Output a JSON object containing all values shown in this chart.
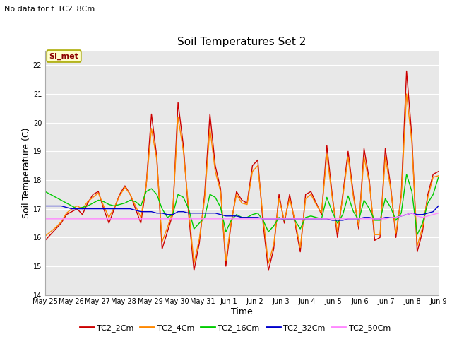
{
  "title": "Soil Temperatures Set 2",
  "suptitle": "No data for f_TC2_8Cm",
  "xlabel": "Time",
  "ylabel": "Soil Temperature (C)",
  "ylim": [
    14.0,
    22.5
  ],
  "yticks": [
    14.0,
    15.0,
    16.0,
    17.0,
    18.0,
    19.0,
    20.0,
    21.0,
    22.0
  ],
  "bg_color": "#e8e8e8",
  "annotation_text": "SI_met",
  "series_colors": {
    "TC2_2Cm": "#cc0000",
    "TC2_4Cm": "#ff8800",
    "TC2_16Cm": "#00cc00",
    "TC2_32Cm": "#0000cc",
    "TC2_50Cm": "#ff88ff"
  },
  "x_labels": [
    "May 25",
    "May 26",
    "May 27",
    "May 28",
    "May 29",
    "May 30",
    "May 31",
    "Jun 1",
    "Jun 2",
    "Jun 3",
    "Jun 4",
    "Jun 5",
    "Jun 6",
    "Jun 7",
    "Jun 8",
    "Jun 9"
  ],
  "TC2_2Cm": [
    15.9,
    16.1,
    16.3,
    16.5,
    16.8,
    16.9,
    17.0,
    16.8,
    17.2,
    17.5,
    17.6,
    17.0,
    16.5,
    17.0,
    17.5,
    17.8,
    17.5,
    17.0,
    16.5,
    17.8,
    20.3,
    18.8,
    15.6,
    16.2,
    16.8,
    20.7,
    19.2,
    16.8,
    14.85,
    15.8,
    17.5,
    20.3,
    18.5,
    17.7,
    15.0,
    16.5,
    17.6,
    17.3,
    17.2,
    18.5,
    18.7,
    16.5,
    14.85,
    15.6,
    17.5,
    16.5,
    17.5,
    16.5,
    15.5,
    17.5,
    17.6,
    17.2,
    16.8,
    19.2,
    17.5,
    16.0,
    17.5,
    19.0,
    17.5,
    16.3,
    19.1,
    18.0,
    15.9,
    16.0,
    19.1,
    17.8,
    16.0,
    17.5,
    21.8,
    19.5,
    15.5,
    16.2,
    17.5,
    18.2,
    18.3
  ],
  "TC2_4Cm": [
    16.05,
    16.2,
    16.35,
    16.55,
    16.85,
    17.0,
    17.1,
    17.0,
    17.25,
    17.4,
    17.55,
    17.1,
    16.7,
    17.05,
    17.45,
    17.75,
    17.5,
    17.1,
    16.7,
    17.8,
    19.8,
    18.7,
    15.85,
    16.35,
    16.9,
    20.2,
    19.0,
    17.0,
    15.1,
    15.95,
    17.35,
    19.8,
    18.3,
    17.6,
    15.2,
    16.55,
    17.5,
    17.2,
    17.15,
    18.3,
    18.5,
    16.7,
    15.1,
    15.75,
    17.35,
    16.6,
    17.35,
    16.6,
    15.65,
    17.35,
    17.5,
    17.15,
    16.85,
    18.9,
    17.4,
    16.2,
    17.4,
    18.8,
    17.4,
    16.4,
    18.8,
    17.9,
    16.1,
    16.1,
    18.8,
    17.7,
    16.15,
    17.4,
    21.0,
    19.3,
    15.7,
    16.35,
    17.4,
    18.1,
    18.15
  ],
  "TC2_16Cm": [
    17.6,
    17.5,
    17.4,
    17.3,
    17.2,
    17.1,
    17.0,
    17.05,
    17.1,
    17.2,
    17.3,
    17.25,
    17.15,
    17.1,
    17.15,
    17.2,
    17.3,
    17.25,
    17.1,
    17.6,
    17.7,
    17.5,
    17.0,
    16.7,
    16.8,
    17.5,
    17.4,
    17.0,
    16.3,
    16.5,
    16.7,
    17.5,
    17.4,
    17.05,
    16.2,
    16.6,
    16.8,
    16.7,
    16.7,
    16.8,
    16.85,
    16.6,
    16.2,
    16.4,
    16.7,
    16.6,
    16.65,
    16.6,
    16.3,
    16.7,
    16.75,
    16.7,
    16.65,
    17.4,
    16.9,
    16.5,
    16.8,
    17.45,
    16.9,
    16.6,
    17.3,
    17.0,
    16.6,
    16.6,
    17.35,
    17.05,
    16.6,
    16.85,
    18.2,
    17.6,
    16.1,
    16.5,
    17.2,
    17.5,
    18.1
  ],
  "TC2_32Cm": [
    17.1,
    17.1,
    17.1,
    17.1,
    17.05,
    17.0,
    17.0,
    17.0,
    17.0,
    17.0,
    17.0,
    17.0,
    17.0,
    17.0,
    17.0,
    17.0,
    17.0,
    16.95,
    16.9,
    16.9,
    16.9,
    16.85,
    16.85,
    16.8,
    16.8,
    16.9,
    16.9,
    16.85,
    16.85,
    16.85,
    16.85,
    16.85,
    16.85,
    16.8,
    16.75,
    16.75,
    16.75,
    16.7,
    16.7,
    16.7,
    16.7,
    16.65,
    16.65,
    16.65,
    16.65,
    16.65,
    16.65,
    16.65,
    16.65,
    16.65,
    16.65,
    16.65,
    16.65,
    16.65,
    16.6,
    16.6,
    16.6,
    16.65,
    16.65,
    16.65,
    16.7,
    16.7,
    16.65,
    16.65,
    16.7,
    16.7,
    16.7,
    16.75,
    16.8,
    16.85,
    16.8,
    16.8,
    16.85,
    16.9,
    17.1
  ],
  "TC2_50Cm": [
    16.65,
    16.65,
    16.65,
    16.65,
    16.65,
    16.65,
    16.65,
    16.65,
    16.65,
    16.65,
    16.65,
    16.65,
    16.65,
    16.65,
    16.65,
    16.65,
    16.65,
    16.65,
    16.65,
    16.65,
    16.65,
    16.65,
    16.65,
    16.65,
    16.65,
    16.65,
    16.65,
    16.65,
    16.65,
    16.65,
    16.65,
    16.65,
    16.65,
    16.65,
    16.65,
    16.65,
    16.65,
    16.65,
    16.65,
    16.65,
    16.65,
    16.65,
    16.65,
    16.65,
    16.65,
    16.65,
    16.65,
    16.65,
    16.65,
    16.65,
    16.65,
    16.65,
    16.65,
    16.65,
    16.65,
    16.65,
    16.65,
    16.65,
    16.65,
    16.65,
    16.65,
    16.65,
    16.65,
    16.65,
    16.65,
    16.7,
    16.7,
    16.75,
    16.8,
    16.85,
    16.75,
    16.7,
    16.75,
    16.8,
    16.85
  ]
}
